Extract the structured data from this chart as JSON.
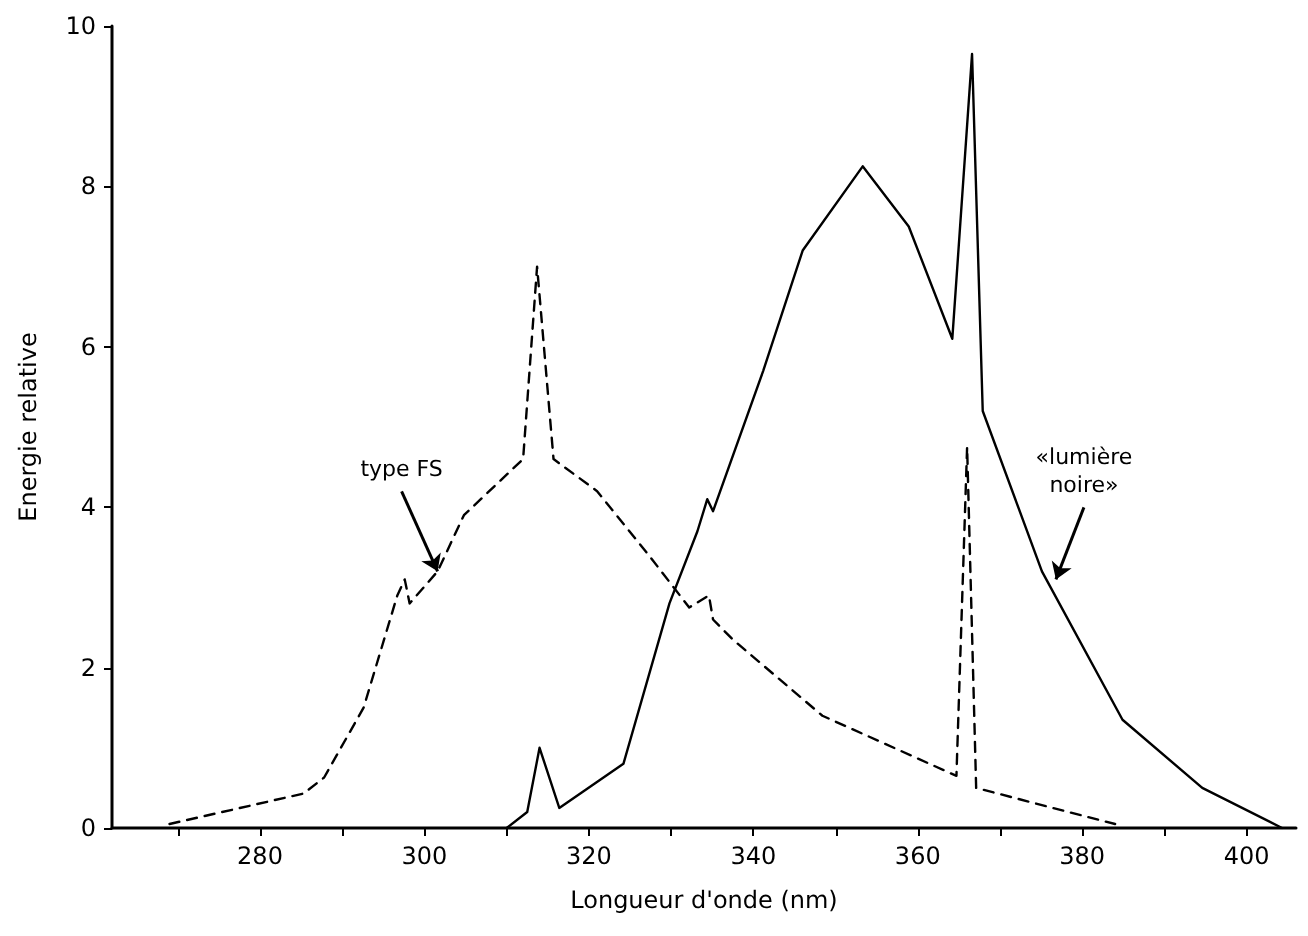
{
  "chart_data": {
    "type": "line",
    "xlabel": "Longueur d'onde (nm)",
    "ylabel": "Energie relative",
    "xlim": [
      262,
      406
    ],
    "ylim": [
      0,
      10
    ],
    "xticks": [
      {
        "value": 270,
        "label": null
      },
      280,
      {
        "value": 290,
        "label": null
      },
      300,
      {
        "value": 310,
        "label": null
      },
      320,
      {
        "value": 330,
        "label": null
      },
      340,
      {
        "value": 350,
        "label": null
      },
      360,
      {
        "value": 370,
        "label": null
      },
      380,
      {
        "value": 390,
        "label": null
      },
      400
    ],
    "yticks": [
      0,
      2,
      4,
      6,
      8,
      10
    ],
    "marker": "none",
    "series": [
      {
        "color": "#000000",
        "line_style": "solid",
        "x": [
          310,
          312.5,
          314,
          316.4,
          324.2,
          329.8,
          333.2,
          334.4,
          335.1,
          341.2,
          346,
          353.3,
          358.9,
          364.2,
          366.6,
          367.9,
          375.1,
          384.9,
          394.6,
          404.3
        ],
        "values": [
          0,
          0.2,
          1.0,
          0.25,
          0.8,
          2.8,
          3.7,
          4.1,
          3.95,
          5.7,
          7.2,
          8.25,
          7.5,
          6.1,
          9.65,
          5.2,
          3.2,
          1.35,
          0.5,
          0
        ]
      },
      {
        "color": "#000000",
        "line_style": "dashed",
        "x": [
          269,
          285.3,
          287.8,
          292.6,
          296.7,
          297.6,
          298.2,
          301.6,
          304.8,
          312,
          313.7,
          315.7,
          321,
          327.3,
          332.2,
          334.6,
          335.1,
          337.5,
          348.4,
          364.7,
          366,
          367.1,
          378.3,
          384
        ],
        "values": [
          0.05,
          0.43,
          0.63,
          1.5,
          2.9,
          3.1,
          2.8,
          3.2,
          3.9,
          4.6,
          7.0,
          4.6,
          4.2,
          3.4,
          2.75,
          2.9,
          2.6,
          2.35,
          1.4,
          0.65,
          4.75,
          0.5,
          0.2,
          0.05
        ]
      }
    ],
    "annotations": [
      {
        "text": "type FS",
        "x": 301.6,
        "y": 3.2
      },
      {
        "text": "«lumière\nnoire»",
        "x": 376.8,
        "y": 3.1
      }
    ]
  }
}
